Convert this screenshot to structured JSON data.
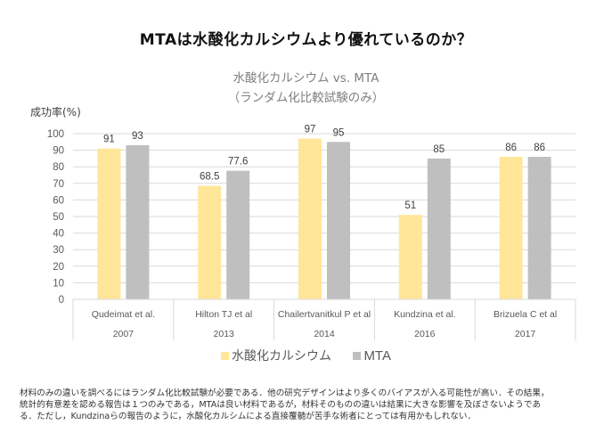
{
  "header": {
    "title": "MTAは水酸化カルシウムより優れているのか？"
  },
  "chart_data": {
    "type": "bar",
    "title": "水酸化カルシウム vs. MTA",
    "subtitle": "（ランダム化比較試験のみ）",
    "ylabel": "成功率(%)",
    "xlabel": "",
    "ylim": [
      0,
      100
    ],
    "yticks": [
      0,
      10,
      20,
      30,
      40,
      50,
      60,
      70,
      80,
      90,
      100
    ],
    "grid": true,
    "legend_position": "bottom",
    "categories": [
      {
        "study": "Qudeimat et al.",
        "year": "2007"
      },
      {
        "study": "Hilton TJ et al",
        "year": "2013"
      },
      {
        "study": "Chailertvanitkul P et al",
        "year": "2014"
      },
      {
        "study": "Kundzina et al.",
        "year": "2016"
      },
      {
        "study": "Brizuela C et al",
        "year": "2017"
      }
    ],
    "series": [
      {
        "name": "水酸化カルシウム",
        "color": "#FFE699",
        "values": [
          91,
          68.5,
          97,
          51,
          86
        ],
        "labels": [
          "91",
          "68.5",
          "97",
          "51",
          "86"
        ]
      },
      {
        "name": "MTA",
        "color": "#BFBFBF",
        "values": [
          93,
          77.6,
          95,
          85,
          86
        ],
        "labels": [
          "93",
          "77.6",
          "95",
          "85",
          "86"
        ]
      }
    ]
  },
  "footnote": {
    "lines": [
      "材料のみの違いを調べるにはランダム化比較試験が必要である．他の研究デザインはより多くのバイアスが入る可能性が高い．その結果，",
      "統計的有意差を認める報告は１つのみである，MTAは良い材料であるが，材料そのものの違いは結果に大きな影響を及ぼさないようであ",
      "る．ただし，Kundzinaらの報告のように，水酸化カルシムによる直接覆髄が苦手な術者にとっては有用かもしれない．"
    ]
  }
}
